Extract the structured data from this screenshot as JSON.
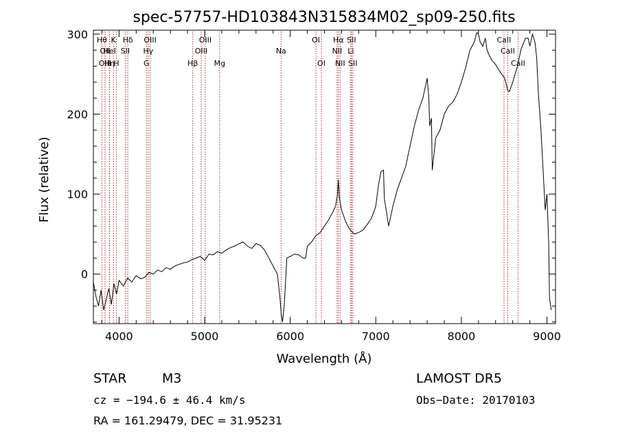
{
  "chart_data": {
    "type": "line",
    "title": "spec-57757-HD103843N315834M02_sp09-250.fits",
    "xlabel": "Wavelength (Å)",
    "ylabel": "Flux (relative)",
    "xlim": [
      3700,
      9100
    ],
    "ylim": [
      -62,
      305
    ],
    "x_ticks": [
      4000,
      5000,
      6000,
      7000,
      8000,
      9000
    ],
    "y_ticks": [
      0,
      100,
      200,
      300
    ],
    "grid": false,
    "line_color": "#000000",
    "marker_color": "#b22222",
    "series": [
      {
        "x": [
          3700,
          3730,
          3760,
          3790,
          3820,
          3850,
          3880,
          3910,
          3940,
          3970,
          4000,
          4050,
          4100,
          4150,
          4200,
          4250,
          4300,
          4350,
          4400,
          4450,
          4500,
          4550,
          4600,
          4650,
          4700,
          4750,
          4800,
          4850,
          4900,
          4950,
          5000,
          5050,
          5100,
          5150,
          5200,
          5250,
          5300,
          5350,
          5400,
          5450,
          5500,
          5550,
          5600,
          5650,
          5700,
          5750,
          5800,
          5850,
          5880,
          5895,
          5910,
          5930,
          5960,
          6000,
          6050,
          6100,
          6150,
          6180,
          6200,
          6250,
          6300,
          6350,
          6400,
          6450,
          6500,
          6530,
          6550,
          6563,
          6575,
          6600,
          6650,
          6700,
          6750,
          6800,
          6850,
          6900,
          6950,
          7000,
          7030,
          7060,
          7090,
          7100,
          7150,
          7200,
          7250,
          7300,
          7350,
          7400,
          7450,
          7500,
          7550,
          7580,
          7600,
          7620,
          7630,
          7650,
          7660,
          7680,
          7700,
          7750,
          7800,
          7850,
          7900,
          7950,
          8000,
          8050,
          8100,
          8150,
          8180,
          8200,
          8220,
          8250,
          8280,
          8300,
          8320,
          8350,
          8400,
          8450,
          8500,
          8520,
          8540,
          8560,
          8600,
          8650,
          8700,
          8750,
          8780,
          8800,
          8830,
          8860,
          8880,
          8900,
          8930,
          8950,
          8980,
          9000,
          9020,
          9030,
          9050
        ],
        "y": [
          -10,
          -28,
          -40,
          -20,
          -45,
          -32,
          -18,
          -38,
          -12,
          -25,
          -8,
          -15,
          -5,
          -10,
          -2,
          -6,
          -4,
          2,
          0,
          5,
          3,
          8,
          6,
          10,
          12,
          14,
          15,
          18,
          20,
          22,
          17,
          25,
          24,
          28,
          26,
          30,
          33,
          35,
          38,
          40,
          35,
          32,
          38,
          36,
          30,
          20,
          10,
          0,
          -30,
          -50,
          -60,
          -40,
          20,
          22,
          25,
          24,
          20,
          20,
          35,
          40,
          48,
          52,
          60,
          68,
          78,
          85,
          98,
          118,
          95,
          80,
          65,
          55,
          50,
          52,
          55,
          62,
          70,
          85,
          110,
          128,
          130,
          95,
          60,
          85,
          105,
          120,
          135,
          160,
          185,
          205,
          220,
          235,
          245,
          220,
          185,
          195,
          130,
          150,
          170,
          180,
          200,
          210,
          215,
          225,
          240,
          258,
          280,
          290,
          302,
          300,
          290,
          285,
          295,
          280,
          275,
          268,
          262,
          253,
          246,
          240,
          230,
          228,
          240,
          258,
          282,
          295,
          295,
          285,
          300,
          290,
          270,
          225,
          180,
          140,
          80,
          100,
          40,
          -30,
          -45
        ]
      }
    ],
    "line_markers": [
      {
        "x": 3799,
        "label": "Hθ",
        "row": 1
      },
      {
        "x": 3836,
        "label": "OII",
        "row": 2
      },
      {
        "x": 3836,
        "label": "OIII",
        "row": 3
      },
      {
        "x": 3889,
        "label": "Hη",
        "row": 3
      },
      {
        "x": 3934,
        "label": "K",
        "row": 1
      },
      {
        "x": 3889,
        "label": "HeI",
        "row": 2
      },
      {
        "x": 3968,
        "label": "H",
        "row": 3
      },
      {
        "x": 4072,
        "label": "SII",
        "row": 2
      },
      {
        "x": 4102,
        "label": "Hδ",
        "row": 1
      },
      {
        "x": 4320,
        "label": "G",
        "row": 3
      },
      {
        "x": 4363,
        "label": "OIII",
        "row": 1
      },
      {
        "x": 4341,
        "label": "Hγ",
        "row": 2
      },
      {
        "x": 4861,
        "label": "Hβ",
        "row": 3
      },
      {
        "x": 4959,
        "label": "OIII",
        "row": 2
      },
      {
        "x": 5007,
        "label": "OIII",
        "row": 1
      },
      {
        "x": 5175,
        "label": "Mg",
        "row": 3
      },
      {
        "x": 5893,
        "label": "Na",
        "row": 2
      },
      {
        "x": 6300,
        "label": "OI",
        "row": 1
      },
      {
        "x": 6364,
        "label": "OI",
        "row": 3
      },
      {
        "x": 6548,
        "label": "NII",
        "row": 2
      },
      {
        "x": 6563,
        "label": "Hα",
        "row": 1
      },
      {
        "x": 6583,
        "label": "NII",
        "row": 3
      },
      {
        "x": 6708,
        "label": "Li",
        "row": 2
      },
      {
        "x": 6716,
        "label": "SII",
        "row": 1
      },
      {
        "x": 6731,
        "label": "SII",
        "row": 3
      },
      {
        "x": 8498,
        "label": "CaII",
        "row": 1
      },
      {
        "x": 8542,
        "label": "CaII",
        "row": 2
      },
      {
        "x": 8662,
        "label": "CaII",
        "row": 3
      }
    ]
  },
  "info": {
    "class_label": "STAR",
    "subclass_label": "M3",
    "survey_label": "LAMOST  DR5",
    "cz_text": "cz = −194.6 ± 46.4 km/s",
    "obs_date_text": "Obs−Date: 20170103",
    "radec_text": "RA = 161.29479, DEC =  31.95231"
  }
}
